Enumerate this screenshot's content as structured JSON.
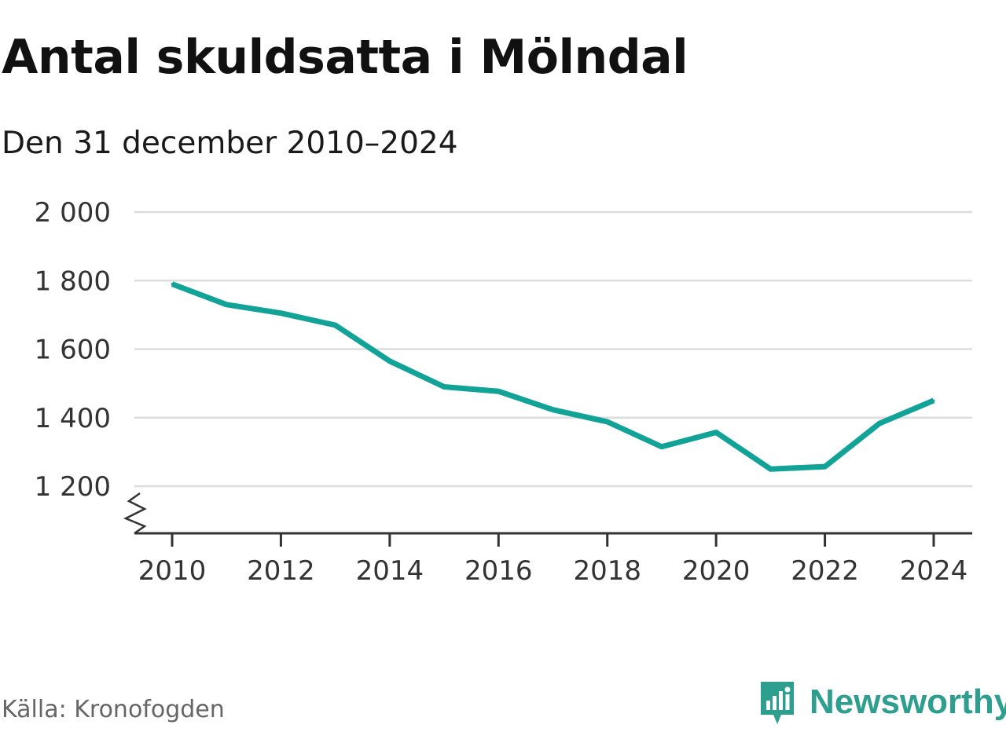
{
  "title": "Antal skuldsatta i Mölndal",
  "subtitle": "Den 31 december 2010–2024",
  "source": "Källa: Kronofogden",
  "brand": {
    "name": "Newsworthy",
    "icon": "newsworthy-logo-icon",
    "color": "#2e9e8f"
  },
  "colors": {
    "line": "#12a398",
    "grid": "#dddddd",
    "axis": "#333333"
  },
  "chart_data": {
    "type": "line",
    "title": "Antal skuldsatta i Mölndal",
    "subtitle": "Den 31 december 2010–2024",
    "xlabel": "",
    "ylabel": "",
    "x": [
      2010,
      2011,
      2012,
      2013,
      2014,
      2015,
      2016,
      2017,
      2018,
      2019,
      2020,
      2021,
      2022,
      2023,
      2024
    ],
    "series": [
      {
        "name": "Antal skuldsatta",
        "values": [
          1790,
          1730,
          1705,
          1670,
          1565,
          1490,
          1477,
          1423,
          1388,
          1315,
          1357,
          1250,
          1257,
          1383,
          1450
        ]
      }
    ],
    "xticks": [
      2010,
      2012,
      2014,
      2016,
      2018,
      2020,
      2022,
      2024
    ],
    "xtick_labels": [
      "2010",
      "2012",
      "2014",
      "2016",
      "2018",
      "2020",
      "2022",
      "2024"
    ],
    "yticks": [
      1200,
      1400,
      1600,
      1800,
      2000
    ],
    "ytick_labels": [
      "1 200",
      "1 400",
      "1 600",
      "1 800",
      "2 000"
    ],
    "xlim": [
      2010,
      2024
    ],
    "ylim": [
      1200,
      2000
    ],
    "axis_break": true,
    "grid": true,
    "legend": "none"
  }
}
